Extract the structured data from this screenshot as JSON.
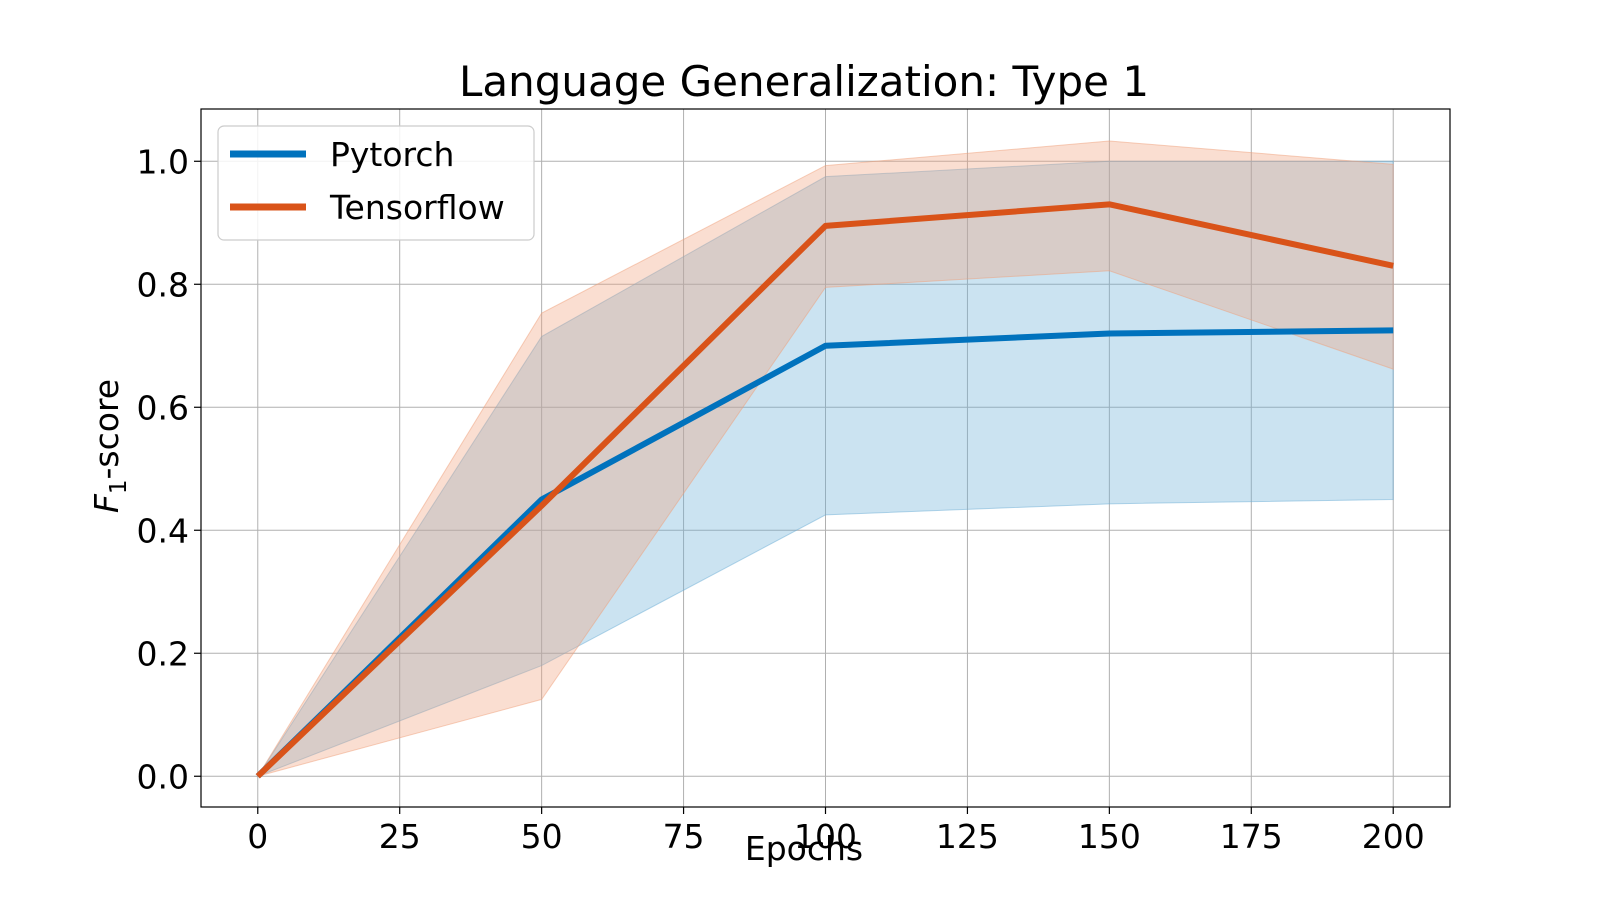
{
  "chart_data": {
    "type": "line",
    "title": "Language Generalization: Type 1",
    "xlabel": "Epochs",
    "ylabel_main": "F",
    "ylabel_sub": "1",
    "ylabel_rest": "-score",
    "xlim": [
      -10,
      210
    ],
    "ylim": [
      -0.05,
      1.085
    ],
    "xticks": [
      0,
      25,
      50,
      75,
      100,
      125,
      150,
      175,
      200
    ],
    "yticks": [
      0.0,
      0.2,
      0.4,
      0.6,
      0.8,
      1.0
    ],
    "ytick_labels": [
      "0.0",
      "0.2",
      "0.4",
      "0.6",
      "0.8",
      "1.0"
    ],
    "grid": true,
    "legend_position": "top-left",
    "x": [
      0,
      50,
      100,
      150,
      200
    ],
    "series": [
      {
        "name": "Pytorch",
        "color": "#0072BD",
        "band_color": "#6baed6",
        "values": [
          0.0,
          0.45,
          0.7,
          0.72,
          0.725
        ],
        "lower": [
          0.0,
          0.18,
          0.425,
          0.443,
          0.45
        ],
        "upper": [
          0.0,
          0.715,
          0.975,
          1.0,
          1.0
        ]
      },
      {
        "name": "Tensorflow",
        "color": "#D95319",
        "band_color": "#f0a07a",
        "values": [
          0.0,
          0.44,
          0.895,
          0.93,
          0.83
        ],
        "lower": [
          0.0,
          0.125,
          0.795,
          0.822,
          0.662
        ],
        "upper": [
          0.0,
          0.753,
          0.993,
          1.033,
          0.995
        ]
      }
    ]
  }
}
